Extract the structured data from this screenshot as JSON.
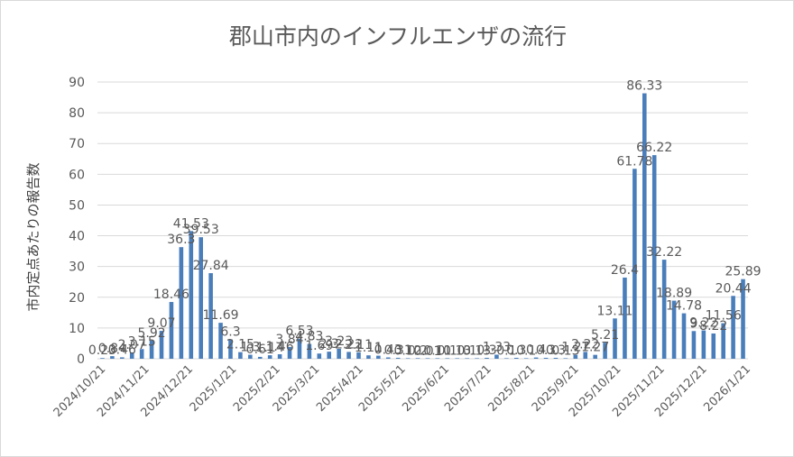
{
  "chart_data": {
    "type": "bar",
    "title": "郡山市内のインフルエンザの流行",
    "ylabel": "市内定点あたりの報告数",
    "xlabel": "",
    "ylim": [
      0,
      90
    ],
    "yticks": [
      0,
      10,
      20,
      30,
      40,
      50,
      60,
      70,
      80,
      90
    ],
    "grid": true,
    "legend": "none",
    "bar_color": "#4a7ebb",
    "xtick_labels": [
      "2024/10/21",
      "2024/11/21",
      "2024/12/21",
      "2025/1/21",
      "2025/2/21",
      "2025/3/21",
      "2025/4/21",
      "2025/5/21",
      "2025/6/21",
      "2025/7/21",
      "2025/8/21",
      "2025/9/21",
      "2025/10/21",
      "2025/11/21",
      "2025/12/21",
      "2026/1/21"
    ],
    "xtick_positions": [
      0,
      4.43,
      8.86,
      13.29,
      17.71,
      21.71,
      26.14,
      30.43,
      34.86,
      39.14,
      43.57,
      48,
      52.29,
      56.71,
      61,
      65.43
    ],
    "values": [
      0.23,
      0.84,
      0.46,
      2.07,
      3.15,
      5.92,
      9.07,
      18.46,
      36.3,
      41.53,
      39.53,
      27.84,
      11.69,
      6.3,
      2.15,
      1.3,
      0.61,
      1.14,
      1.46,
      3.84,
      6.53,
      4.83,
      1.69,
      2.3,
      3.23,
      2.22,
      2.11,
      1.11,
      1.0,
      0.43,
      0.31,
      0.12,
      0.2,
      0.01,
      0.11,
      0.1,
      0.13,
      0.1,
      0.13,
      0.3,
      1.33,
      0.1,
      0.3,
      0.1,
      0.4,
      0.3,
      0.3,
      0.13,
      1.27,
      2.22,
      1.27,
      5.21,
      13.11,
      26.4,
      61.78,
      86.33,
      66.22,
      32.22,
      18.89,
      14.78,
      9.0,
      9.22,
      8.22,
      11.56,
      20.44,
      25.89
    ],
    "data_labels": [
      "0.23",
      "0.84",
      "0.46",
      "2.07",
      "3.15",
      "5.92",
      "9.07",
      "18.46",
      "36.3",
      "41.53",
      "39.53",
      "27.84",
      "11.69",
      "6.3",
      "2.15",
      "1.3",
      "0.61",
      "1.14",
      "1.46",
      "3.84",
      "6.53",
      "4.83",
      "1.69",
      "2.3",
      "3.23",
      "2.22",
      "2.11",
      "1.11",
      "1",
      "0.43",
      "0.31",
      "0.12",
      "0.2",
      "0.01",
      "0.11",
      "0.1",
      "0.13",
      "0.1",
      "0.13",
      "0.3",
      "1.33",
      "0.1",
      "0.3",
      "0.1",
      "0.4",
      "0.3",
      "0.3",
      "0.13",
      "1.27",
      "2.22",
      "1.27",
      "5.21",
      "13.11",
      "26.4",
      "61.78",
      "86.33",
      "66.22",
      "32.22",
      "18.89",
      "14.78",
      "9",
      "9.22",
      "8.22",
      "11.56",
      "20.44",
      "25.89"
    ]
  }
}
